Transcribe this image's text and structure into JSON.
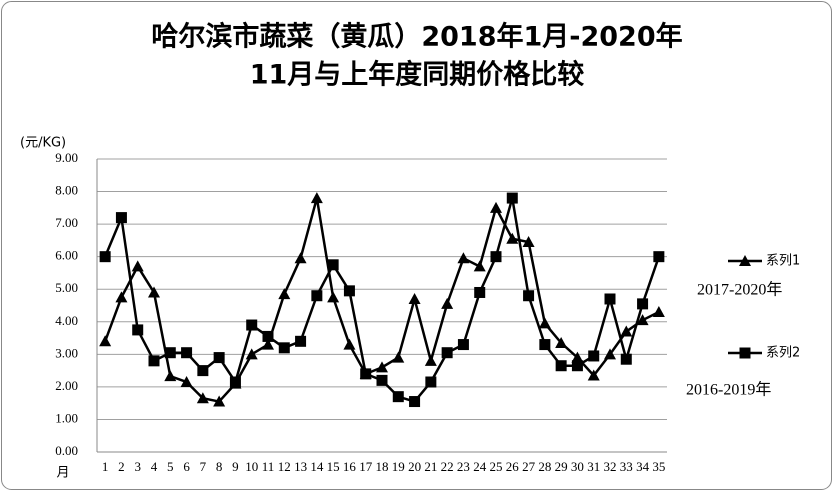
{
  "chart_data": {
    "type": "line",
    "title": [
      "哈尔滨市蔬菜（黄瓜）2018年1月-2020年",
      "11月与上年度同期价格比较"
    ],
    "y_label": "(元/KG)",
    "x_label": "月",
    "categories": [
      "1",
      "2",
      "3",
      "4",
      "5",
      "6",
      "7",
      "8",
      "9",
      "10",
      "11",
      "12",
      "13",
      "14",
      "15",
      "16",
      "17",
      "18",
      "19",
      "20",
      "21",
      "22",
      "23",
      "24",
      "25",
      "26",
      "27",
      "28",
      "29",
      "30",
      "31",
      "32",
      "33",
      "34",
      "35"
    ],
    "series": [
      {
        "name": "系列1",
        "note": "2017-2020年",
        "marker": "triangle",
        "color": "#000000",
        "values": [
          3.4,
          4.75,
          5.7,
          4.9,
          2.33,
          2.15,
          1.65,
          1.55,
          2.1,
          3.0,
          3.3,
          4.85,
          5.95,
          7.8,
          4.75,
          3.3,
          2.4,
          2.6,
          2.9,
          4.7,
          2.8,
          4.55,
          5.95,
          5.7,
          7.5,
          6.55,
          6.45,
          3.95,
          3.35,
          2.9,
          2.35,
          3.0,
          3.7,
          4.05,
          4.3
        ]
      },
      {
        "name": "系列2",
        "note": "2016-2019年",
        "marker": "square",
        "color": "#000000",
        "values": [
          6.0,
          7.2,
          3.75,
          2.8,
          3.05,
          3.05,
          2.5,
          2.9,
          2.15,
          3.9,
          3.55,
          3.2,
          3.4,
          4.8,
          5.75,
          4.95,
          2.4,
          2.2,
          1.7,
          1.55,
          2.15,
          3.05,
          3.3,
          4.9,
          6.0,
          7.8,
          4.8,
          3.3,
          2.65,
          2.65,
          2.95,
          4.7,
          2.85,
          4.55,
          6.0
        ]
      }
    ],
    "ylim": [
      0,
      9
    ],
    "yticks": [
      {
        "value": 0,
        "label": "0.00"
      },
      {
        "value": 1,
        "label": "1.00"
      },
      {
        "value": 2,
        "label": "2.00"
      },
      {
        "value": 3,
        "label": "3.00"
      },
      {
        "value": 4,
        "label": "4.00"
      },
      {
        "value": 5,
        "label": "5.00"
      },
      {
        "value": 6,
        "label": "6.00"
      },
      {
        "value": 7,
        "label": "7.00"
      },
      {
        "value": 8,
        "label": "8.00"
      },
      {
        "value": 9,
        "label": "9.00"
      }
    ],
    "grid": true
  }
}
